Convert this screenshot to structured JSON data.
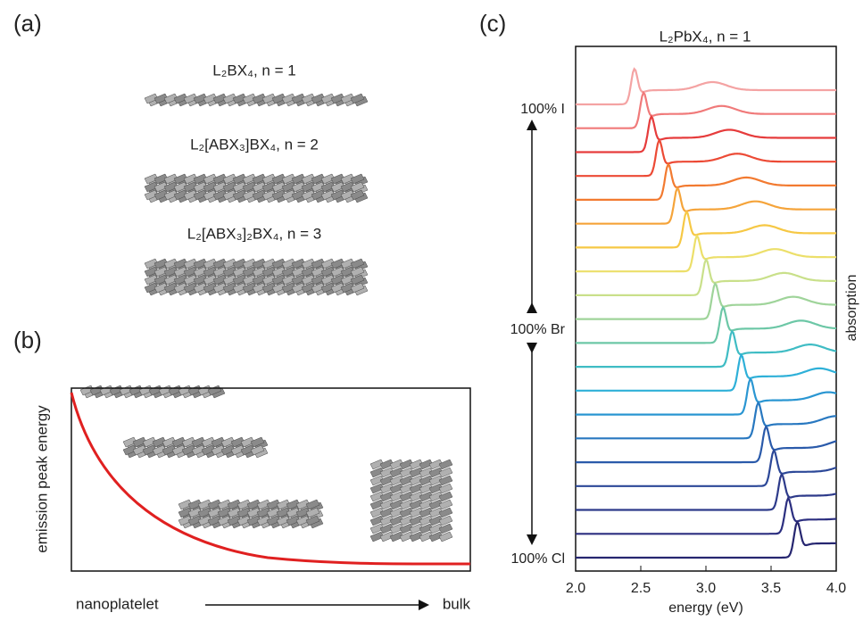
{
  "panels": {
    "a": "(a)",
    "b": "(b)",
    "c": "(c)"
  },
  "panel_a": {
    "structures": [
      "L₂BX₄, n = 1",
      "L₂[ABX₃]BX₄, n = 2",
      "L₂[ABX₃]₂BX₄, n = 3"
    ]
  },
  "panel_b": {
    "ylabel": "emission peak energy",
    "xlabel_left": "nanoplatelet",
    "xlabel_right": "bulk"
  },
  "chart_data": {
    "type": "line",
    "title": "L₂PbX₄, n = 1",
    "xlabel": "energy (eV)",
    "ylabel": "absorption",
    "xlim": [
      2.0,
      4.0
    ],
    "xticks": [
      {
        "value": 2.0,
        "label": "2.0"
      },
      {
        "value": 2.5,
        "label": "2.5"
      },
      {
        "value": 3.0,
        "label": "3.0"
      },
      {
        "value": 3.5,
        "label": "3.5"
      },
      {
        "value": 4.0,
        "label": "4.0"
      }
    ],
    "composition_labels": [
      "100% I",
      "100% Br",
      "100% Cl"
    ],
    "series": [
      {
        "color": "#f4a3a3",
        "peak": 2.45
      },
      {
        "color": "#f07a7a",
        "peak": 2.52
      },
      {
        "color": "#e63c3c",
        "peak": 2.58
      },
      {
        "color": "#ec4a35",
        "peak": 2.64
      },
      {
        "color": "#f27a30",
        "peak": 2.71
      },
      {
        "color": "#f5a43a",
        "peak": 2.78
      },
      {
        "color": "#f6c845",
        "peak": 2.85
      },
      {
        "color": "#ecdf6a",
        "peak": 2.93
      },
      {
        "color": "#c9e08a",
        "peak": 3.0
      },
      {
        "color": "#9fd49a",
        "peak": 3.07
      },
      {
        "color": "#6cc7a6",
        "peak": 3.13
      },
      {
        "color": "#3fbcc4",
        "peak": 3.2
      },
      {
        "color": "#2eb0d8",
        "peak": 3.27
      },
      {
        "color": "#2a96d2",
        "peak": 3.34
      },
      {
        "color": "#2878c0",
        "peak": 3.4
      },
      {
        "color": "#2a5aaa",
        "peak": 3.46
      },
      {
        "color": "#2c4898",
        "peak": 3.52
      },
      {
        "color": "#2d3a8a",
        "peak": 3.58
      },
      {
        "color": "#2c2f80",
        "peak": 3.63
      },
      {
        "color": "#262670",
        "peak": 3.7
      }
    ]
  }
}
